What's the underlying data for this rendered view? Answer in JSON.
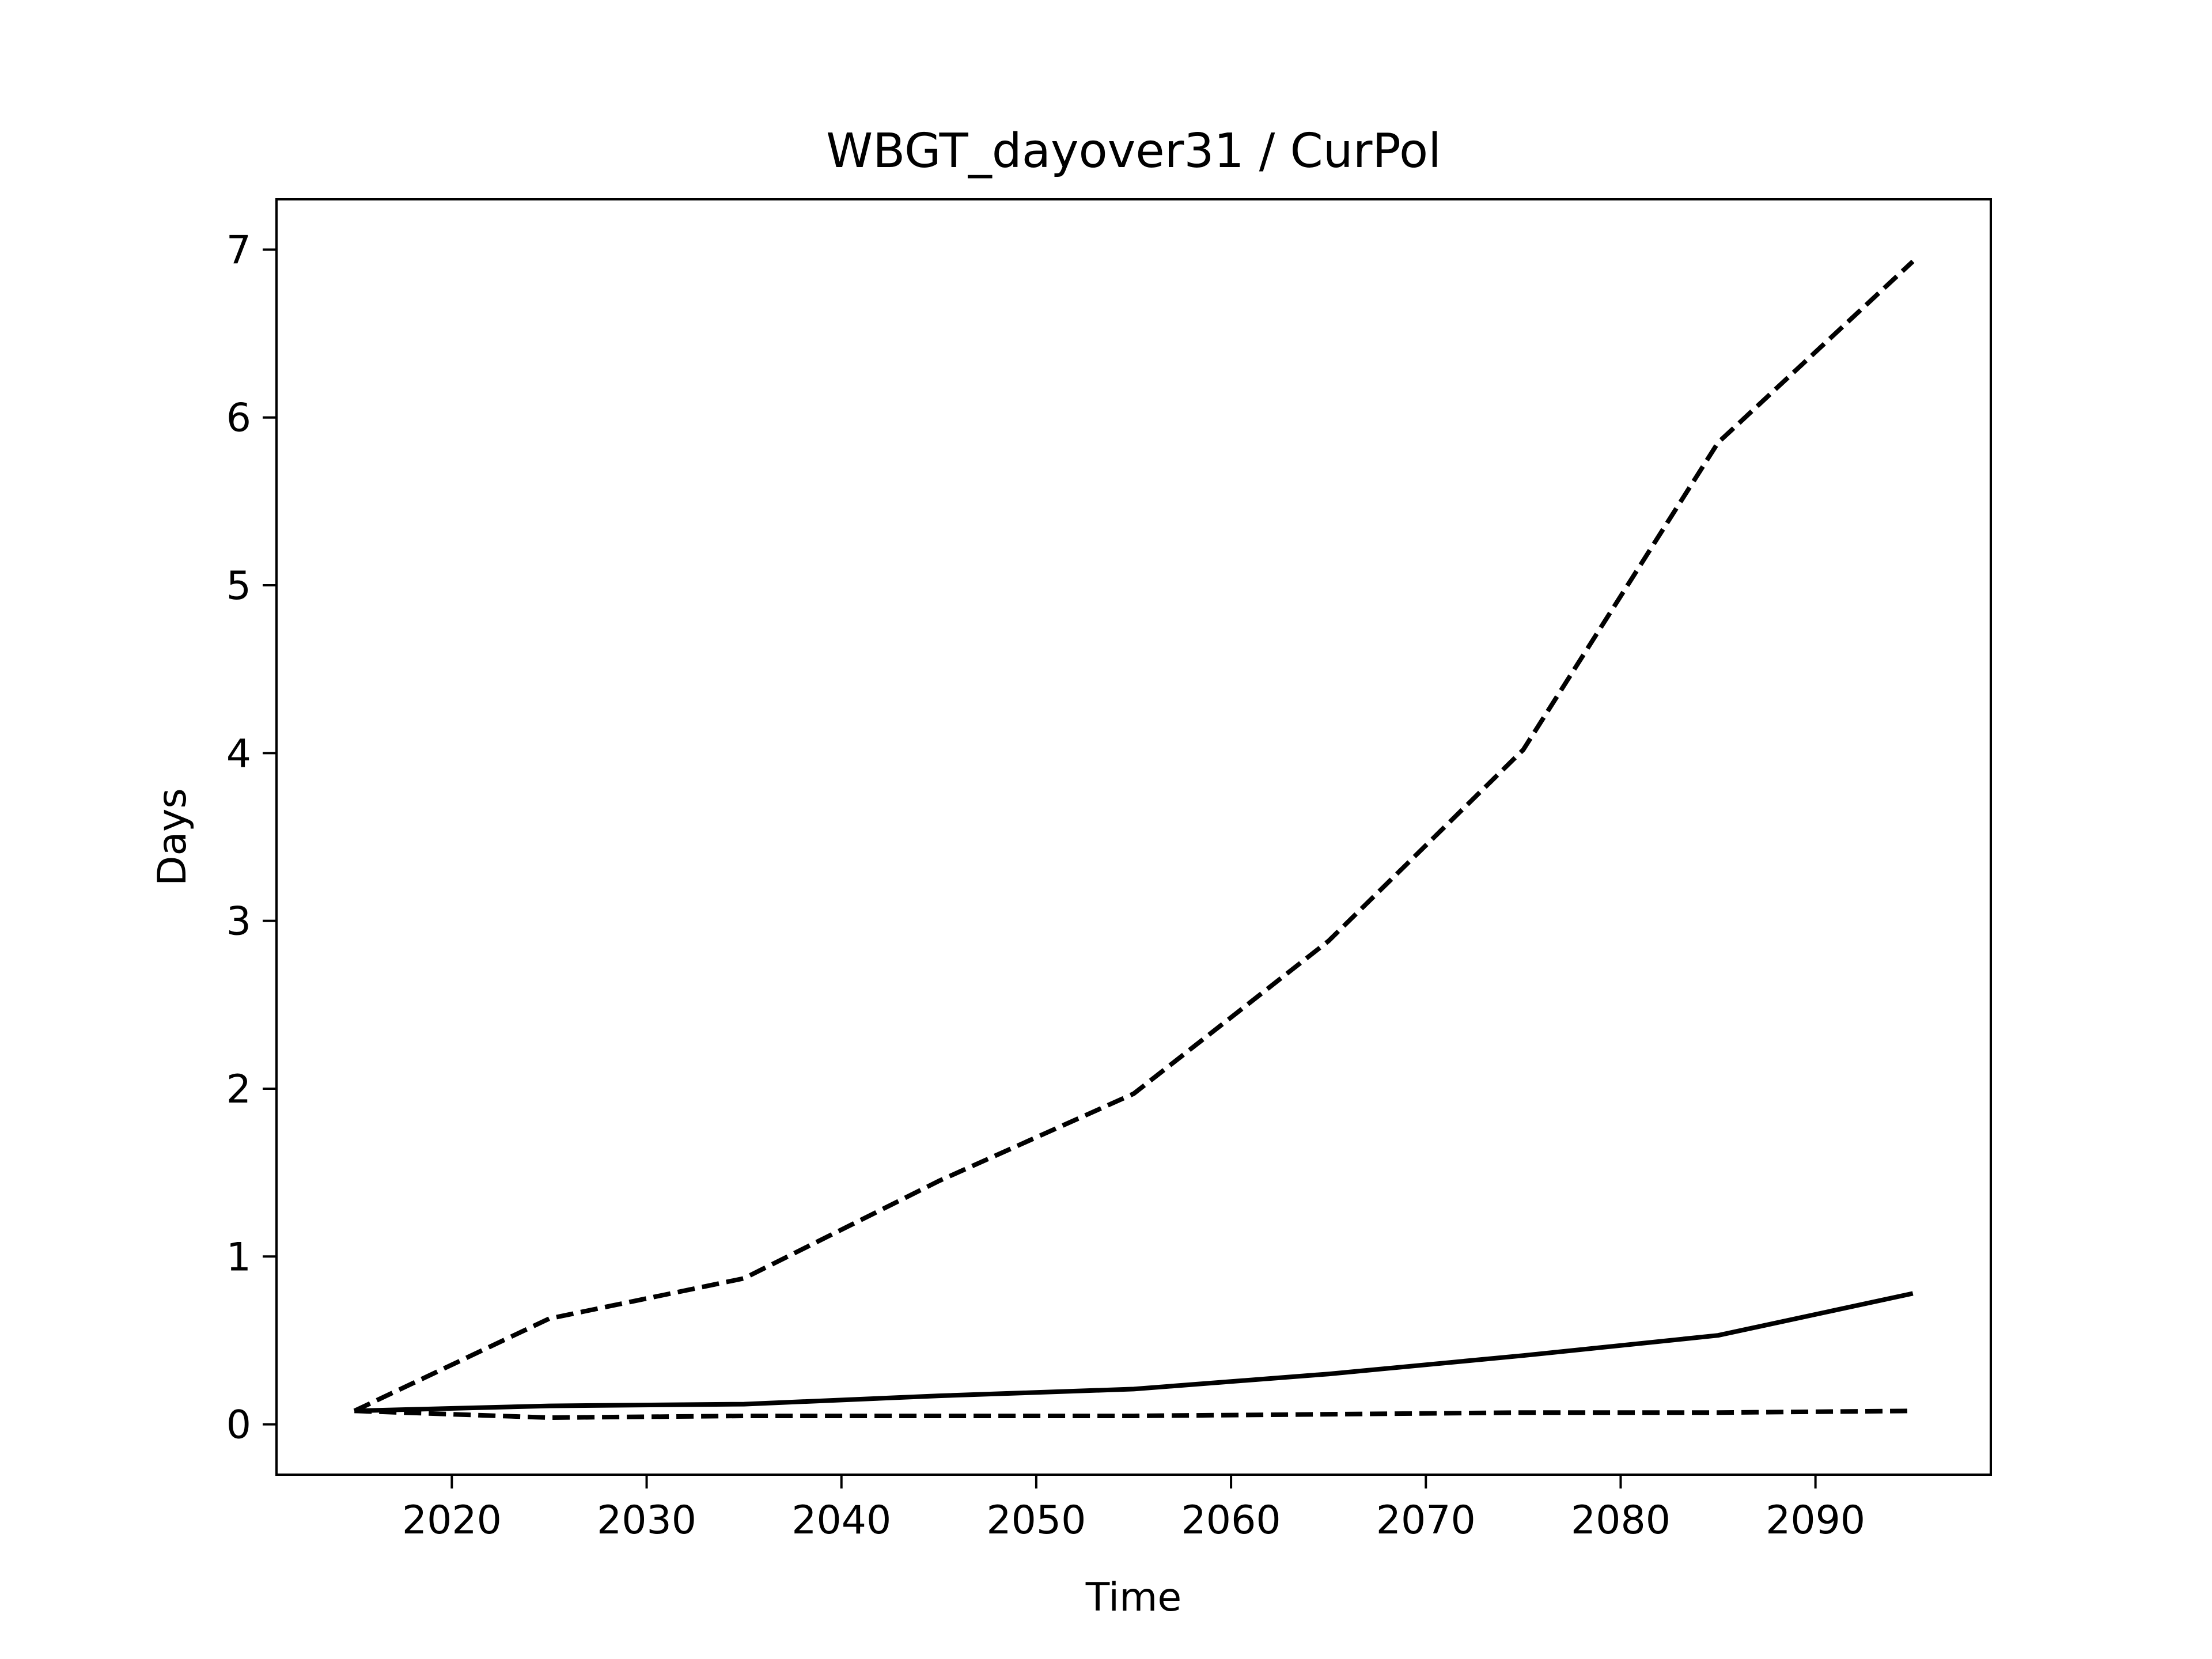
{
  "chart_data": {
    "type": "line",
    "title": "WBGT_dayover31 / CurPol",
    "xlabel": "Time",
    "ylabel": "Days",
    "xlim": [
      2011,
      2099
    ],
    "ylim": [
      -0.3,
      7.3
    ],
    "xticks": [
      2020,
      2030,
      2040,
      2050,
      2060,
      2070,
      2080,
      2090
    ],
    "yticks": [
      0,
      1,
      2,
      3,
      4,
      5,
      6,
      7
    ],
    "grid": false,
    "legend": "none",
    "color": "#000000",
    "x": [
      2015,
      2025,
      2035,
      2045,
      2055,
      2065,
      2075,
      2085,
      2095
    ],
    "series": [
      {
        "style": "dashed",
        "values": [
          0.08,
          0.63,
          0.87,
          1.45,
          1.97,
          2.88,
          4.02,
          5.85,
          6.93
        ]
      },
      {
        "style": "solid",
        "values": [
          0.08,
          0.11,
          0.12,
          0.17,
          0.21,
          0.3,
          0.41,
          0.53,
          0.78
        ]
      },
      {
        "style": "dashed",
        "values": [
          0.08,
          0.04,
          0.05,
          0.05,
          0.05,
          0.06,
          0.07,
          0.07,
          0.08
        ]
      }
    ]
  }
}
